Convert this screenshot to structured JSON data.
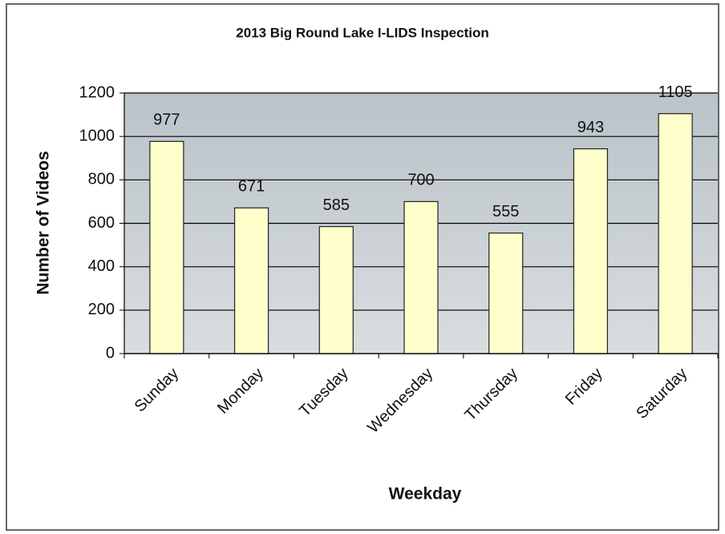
{
  "chart_data": {
    "type": "bar",
    "title": "2013 Big Round Lake I-LIDS Inspection",
    "x_label": "Weekday",
    "y_label": "Number of Videos",
    "categories": [
      "Sunday",
      "Monday",
      "Tuesday",
      "Wednesday",
      "Thursday",
      "Friday",
      "Saturday"
    ],
    "values": [
      977,
      671,
      585,
      700,
      555,
      943,
      1105
    ],
    "color": "#ffffcc",
    "ylim": [
      0,
      1200
    ],
    "yticks": [
      0,
      200,
      400,
      600,
      800,
      1000,
      1200
    ],
    "grid": true
  }
}
